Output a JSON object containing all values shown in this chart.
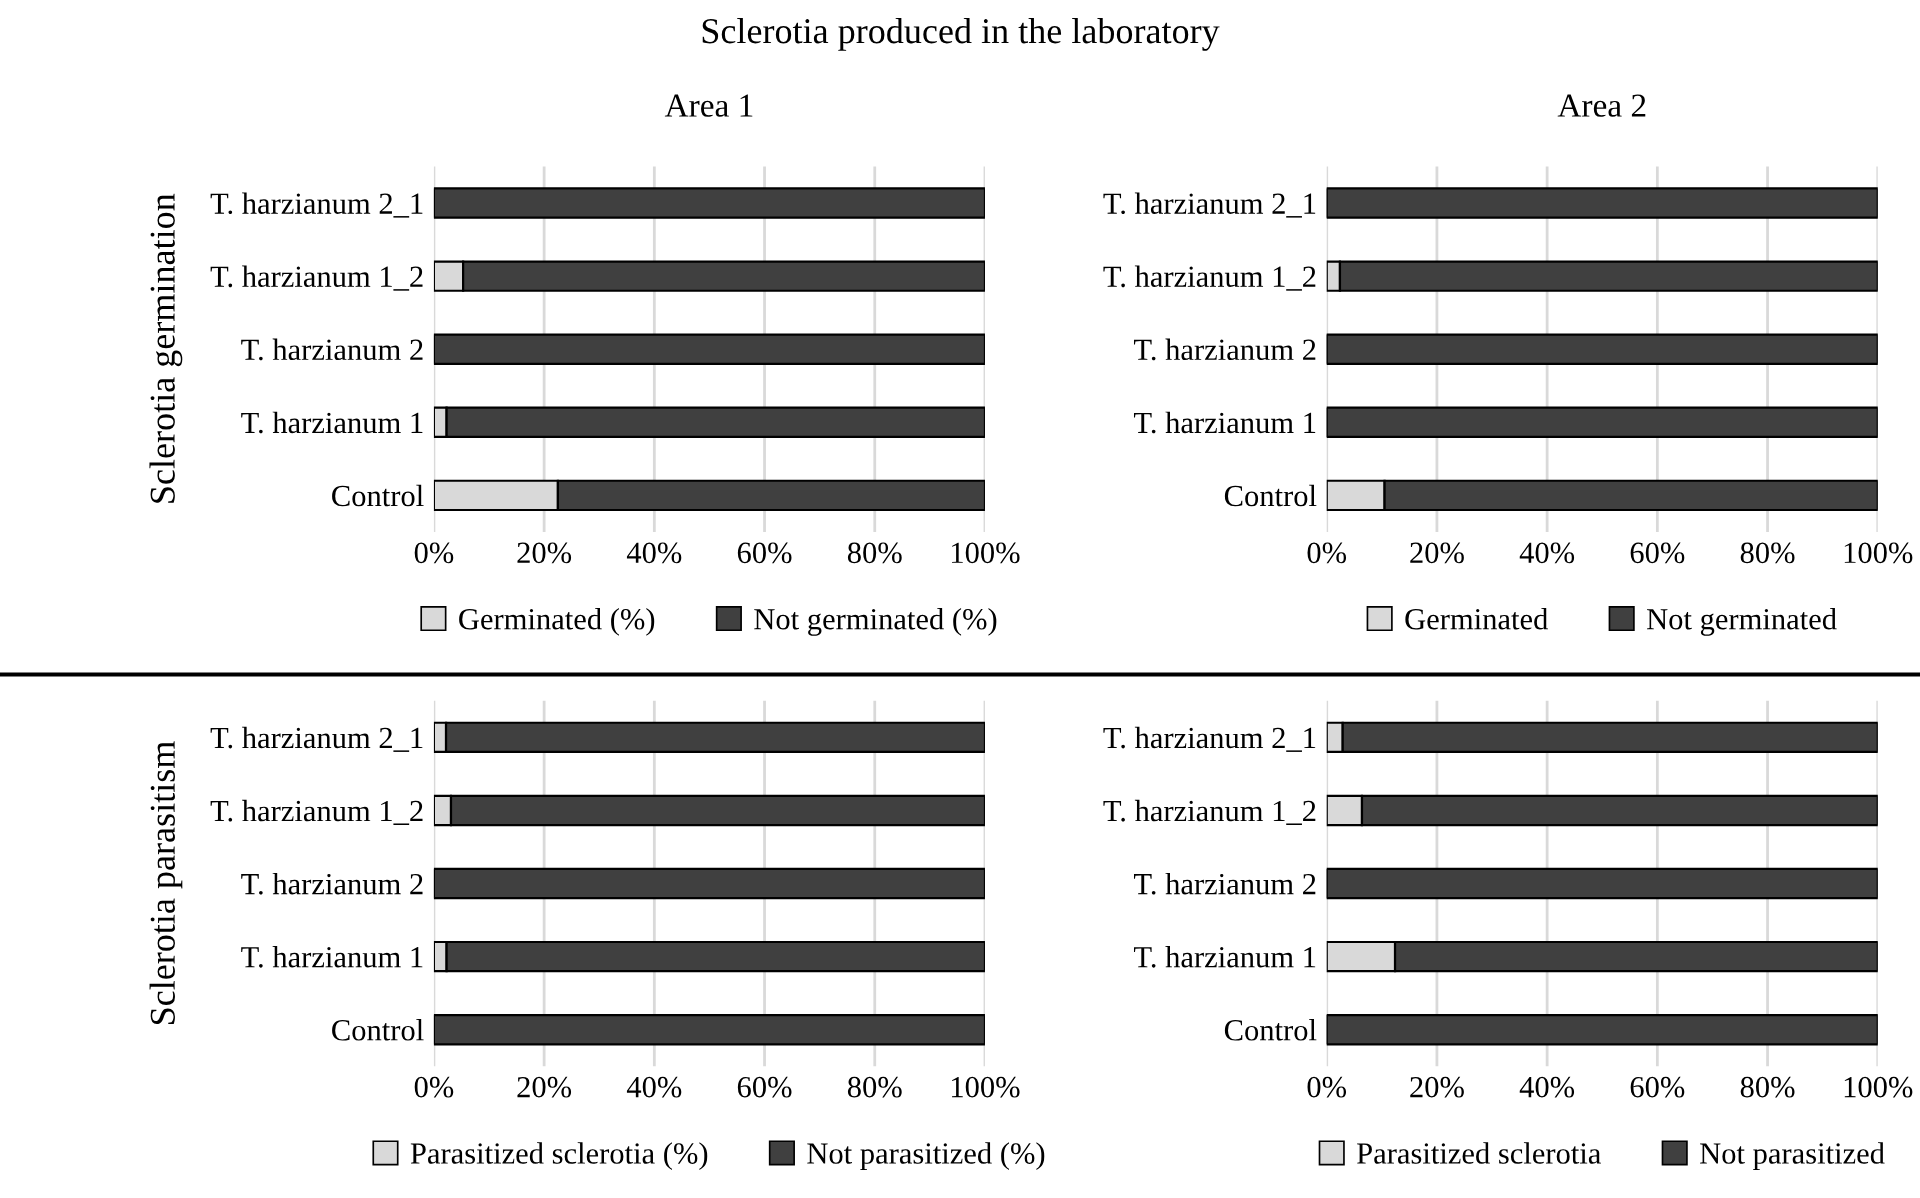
{
  "chart_data": [
    {
      "type": "bar",
      "orientation": "horizontal",
      "stacked": true,
      "title": "Area 1",
      "ylabel": "Sclerotia germination",
      "annotations": [
        "Sclerotia produced in the laboratory"
      ],
      "categories": [
        "T. harzianum 2_1",
        "T. harzianum 1_2",
        "T. harzianum 2",
        "T. harzianum 1",
        "Control"
      ],
      "series": [
        {
          "name": "Germinated (%)",
          "color": "#d9d9d9",
          "values": [
            0,
            5.3,
            0,
            2.3,
            22.5
          ]
        },
        {
          "name": "Not germinated (%)",
          "color": "#404040",
          "values": [
            100,
            94.7,
            100,
            97.7,
            77.5
          ]
        }
      ],
      "xlim": [
        0,
        100
      ],
      "xticks": [
        {
          "value": 0,
          "label": "0%"
        },
        {
          "value": 20,
          "label": "20%"
        },
        {
          "value": 40,
          "label": "40%"
        },
        {
          "value": 60,
          "label": "60%"
        },
        {
          "value": 80,
          "label": "80%"
        },
        {
          "value": 100,
          "label": "100%"
        }
      ],
      "grid": "x",
      "legend": "bottom"
    },
    {
      "type": "bar",
      "orientation": "horizontal",
      "stacked": true,
      "title": "Area 2",
      "categories": [
        "T. harzianum 2_1",
        "T. harzianum 1_2",
        "T. harzianum 2",
        "T. harzianum 1",
        "Control"
      ],
      "series": [
        {
          "name": "Germinated",
          "color": "#d9d9d9",
          "values": [
            0,
            2.4,
            0,
            0,
            10.5
          ]
        },
        {
          "name": "Not germinated",
          "color": "#404040",
          "values": [
            100,
            97.6,
            100,
            100,
            89.5
          ]
        }
      ],
      "xlim": [
        0,
        100
      ],
      "xticks": [
        {
          "value": 0,
          "label": "0%"
        },
        {
          "value": 20,
          "label": "20%"
        },
        {
          "value": 40,
          "label": "40%"
        },
        {
          "value": 60,
          "label": "60%"
        },
        {
          "value": 80,
          "label": "80%"
        },
        {
          "value": 100,
          "label": "100%"
        }
      ],
      "grid": "x",
      "legend": "bottom"
    },
    {
      "type": "bar",
      "orientation": "horizontal",
      "stacked": true,
      "ylabel": "Sclerotia parasitism",
      "categories": [
        "T. harzianum 2_1",
        "T. harzianum 1_2",
        "T. harzianum 2",
        "T. harzianum 1",
        "Control"
      ],
      "series": [
        {
          "name": "Parasitized sclerotia (%)",
          "color": "#d9d9d9",
          "values": [
            2.2,
            3.1,
            0,
            2.3,
            0
          ]
        },
        {
          "name": "Not parasitized (%)",
          "color": "#404040",
          "values": [
            97.8,
            96.9,
            100,
            97.7,
            100
          ]
        }
      ],
      "xlim": [
        0,
        100
      ],
      "xticks": [
        {
          "value": 0,
          "label": "0%"
        },
        {
          "value": 20,
          "label": "20%"
        },
        {
          "value": 40,
          "label": "40%"
        },
        {
          "value": 60,
          "label": "60%"
        },
        {
          "value": 80,
          "label": "80%"
        },
        {
          "value": 100,
          "label": "100%"
        }
      ],
      "grid": "x",
      "legend": "bottom"
    },
    {
      "type": "bar",
      "orientation": "horizontal",
      "stacked": true,
      "categories": [
        "T. harzianum 2_1",
        "T. harzianum 1_2",
        "T. harzianum 2",
        "T. harzianum 1",
        "Control"
      ],
      "series": [
        {
          "name": "Parasitized sclerotia",
          "color": "#d9d9d9",
          "values": [
            2.9,
            6.4,
            0,
            12.4,
            0
          ]
        },
        {
          "name": "Not parasitized",
          "color": "#404040",
          "values": [
            97.1,
            93.6,
            100,
            87.6,
            100
          ]
        }
      ],
      "xlim": [
        0,
        100
      ],
      "xticks": [
        {
          "value": 0,
          "label": "0%"
        },
        {
          "value": 20,
          "label": "20%"
        },
        {
          "value": 40,
          "label": "40%"
        },
        {
          "value": 60,
          "label": "60%"
        },
        {
          "value": 80,
          "label": "80%"
        },
        {
          "value": 100,
          "label": "100%"
        }
      ],
      "grid": "x",
      "legend": "bottom"
    }
  ]
}
